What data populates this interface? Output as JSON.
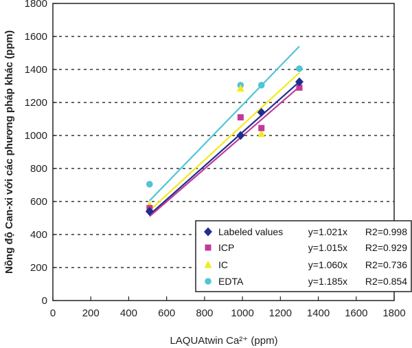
{
  "chart_data": {
    "type": "scatter",
    "xlabel": "LAQUAtwin Ca²⁺ (ppm)",
    "ylabel": "Nồng độ Can-xi với các phương pháp khác (ppm)",
    "xlim": [
      0,
      1800
    ],
    "ylim": [
      0,
      1800
    ],
    "x_ticks": [
      0,
      200,
      400,
      600,
      800,
      1000,
      1200,
      1400,
      1600,
      1800
    ],
    "y_ticks": [
      0,
      200,
      400,
      600,
      800,
      1000,
      1200,
      1400,
      1600,
      1800
    ],
    "grid": "horizontal dotted",
    "legend_position": "bottom-right",
    "series": [
      {
        "name": "Labeled values",
        "marker": "diamond",
        "color": "#1f2d8c",
        "points": [
          [
            510,
            540
          ],
          [
            990,
            1000
          ],
          [
            1100,
            1140
          ],
          [
            1300,
            1325
          ]
        ],
        "fit": {
          "x": [
            510,
            1300
          ],
          "y": [
            520,
            1325
          ]
        },
        "equation": "y=1.021x",
        "r2": "R2=0.998"
      },
      {
        "name": "ICP",
        "marker": "square",
        "color": "#c2399b",
        "points": [
          [
            510,
            560
          ],
          [
            990,
            1110
          ],
          [
            1100,
            1045
          ],
          [
            1300,
            1290
          ]
        ],
        "fit": {
          "x": [
            510,
            1300
          ],
          "y": [
            510,
            1295
          ]
        },
        "equation": "y=1.015x",
        "r2": "R2=0.929"
      },
      {
        "name": "IC",
        "marker": "triangle",
        "color": "#f2ea1a",
        "points": [
          [
            510,
            580
          ],
          [
            990,
            1285
          ],
          [
            1100,
            1010
          ],
          [
            1300,
            1300
          ]
        ],
        "fit": {
          "x": [
            510,
            1300
          ],
          "y": [
            545,
            1380
          ]
        },
        "equation": "y=1.060x",
        "r2": "R2=0.736"
      },
      {
        "name": "EDTA",
        "marker": "circle",
        "color": "#4fc5d6",
        "points": [
          [
            510,
            705
          ],
          [
            990,
            1305
          ],
          [
            1100,
            1305
          ],
          [
            1300,
            1405
          ]
        ],
        "fit": {
          "x": [
            510,
            1300
          ],
          "y": [
            605,
            1540
          ]
        },
        "equation": "y=1.185x",
        "r2": "R2=0.854"
      }
    ]
  }
}
